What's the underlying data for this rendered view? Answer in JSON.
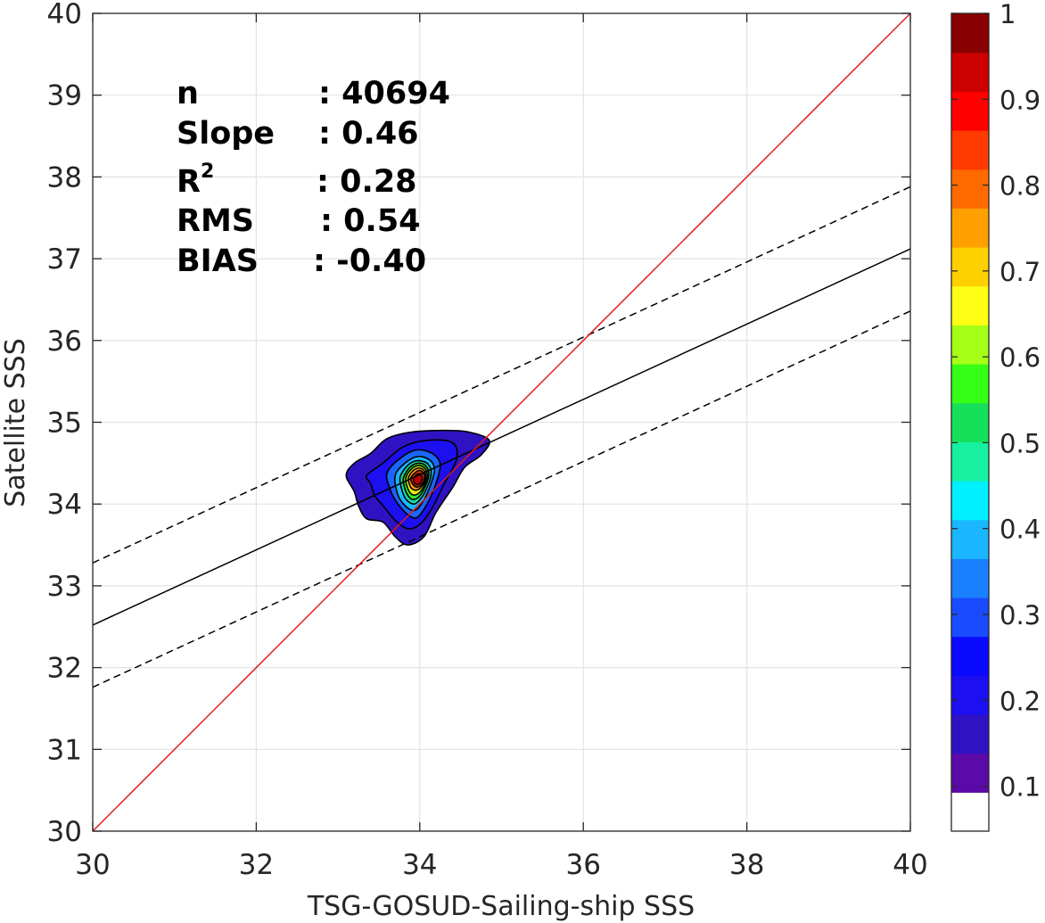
{
  "chart_data": {
    "type": "contour",
    "xlabel": "TSG-GOSUD-Sailing-ship SSS",
    "ylabel": "Satellite SSS",
    "xlim": [
      30,
      40
    ],
    "ylim": [
      30,
      40
    ],
    "x_ticks": [
      30,
      32,
      34,
      36,
      38,
      40
    ],
    "y_ticks": [
      30,
      31,
      32,
      33,
      34,
      35,
      36,
      37,
      38,
      39,
      40
    ],
    "grid": true,
    "stats": {
      "n_label": "n",
      "n_value": ": 40694",
      "slope_label": "Slope",
      "slope_value": ": 0.46",
      "r2_label": "R",
      "r2_sup": "2",
      "r2_value": ": 0.28",
      "rms_label": "RMS",
      "rms_value": ": 0.54",
      "bias_label": "BIAS",
      "bias_value": ": -0.40"
    },
    "lines": {
      "identity": {
        "from": [
          30,
          30
        ],
        "to": [
          40,
          40
        ],
        "color": "#e0191b",
        "style": "solid"
      },
      "regression": {
        "from": [
          30,
          32.52
        ],
        "to": [
          40,
          37.12
        ],
        "color": "#000000",
        "style": "solid"
      },
      "upper_bound": {
        "from": [
          30,
          33.28
        ],
        "to": [
          40,
          37.88
        ],
        "color": "#000000",
        "style": "dashed"
      },
      "lower_bound": {
        "from": [
          30,
          31.76
        ],
        "to": [
          40,
          36.36
        ],
        "color": "#000000",
        "style": "dashed"
      }
    },
    "density_peak": {
      "x": 33.95,
      "y": 34.3
    },
    "contours": [
      {
        "level": 0.05,
        "color": "#2f13c3",
        "points": [
          [
            33.1,
            34.35
          ],
          [
            33.2,
            34.5
          ],
          [
            33.4,
            34.62
          ],
          [
            33.6,
            34.8
          ],
          [
            33.9,
            34.88
          ],
          [
            34.3,
            34.9
          ],
          [
            34.6,
            34.88
          ],
          [
            34.85,
            34.78
          ],
          [
            34.75,
            34.6
          ],
          [
            34.55,
            34.45
          ],
          [
            34.4,
            34.2
          ],
          [
            34.2,
            33.9
          ],
          [
            34.05,
            33.6
          ],
          [
            33.85,
            33.5
          ],
          [
            33.7,
            33.6
          ],
          [
            33.55,
            33.78
          ],
          [
            33.35,
            33.82
          ],
          [
            33.25,
            33.98
          ],
          [
            33.2,
            34.15
          ]
        ]
      },
      {
        "level": 0.15,
        "color": "#1c0ff0",
        "points": [
          [
            33.35,
            34.35
          ],
          [
            33.55,
            34.5
          ],
          [
            33.8,
            34.7
          ],
          [
            34.1,
            34.78
          ],
          [
            34.4,
            34.75
          ],
          [
            34.45,
            34.55
          ],
          [
            34.3,
            34.25
          ],
          [
            34.15,
            33.95
          ],
          [
            34.0,
            33.75
          ],
          [
            33.85,
            33.7
          ],
          [
            33.7,
            33.8
          ],
          [
            33.55,
            33.98
          ],
          [
            33.45,
            34.1
          ],
          [
            33.4,
            34.25
          ]
        ]
      },
      {
        "level": 0.25,
        "color": "#1a66ff",
        "points": [
          [
            33.6,
            34.38
          ],
          [
            33.75,
            34.55
          ],
          [
            33.95,
            34.66
          ],
          [
            34.15,
            34.62
          ],
          [
            34.25,
            34.48
          ],
          [
            34.18,
            34.2
          ],
          [
            34.06,
            33.95
          ],
          [
            33.95,
            33.83
          ],
          [
            33.82,
            33.9
          ],
          [
            33.7,
            34.05
          ],
          [
            33.63,
            34.2
          ]
        ]
      },
      {
        "level": 0.35,
        "color": "#1ab6ff",
        "points": [
          [
            33.7,
            34.35
          ],
          [
            33.82,
            34.5
          ],
          [
            33.97,
            34.58
          ],
          [
            34.12,
            34.54
          ],
          [
            34.18,
            34.42
          ],
          [
            34.12,
            34.2
          ],
          [
            34.02,
            34.0
          ],
          [
            33.93,
            33.92
          ],
          [
            33.82,
            33.98
          ],
          [
            33.73,
            34.12
          ]
        ]
      },
      {
        "level": 0.45,
        "color": "#16d9a0",
        "points": [
          [
            33.76,
            34.33
          ],
          [
            33.86,
            34.48
          ],
          [
            33.98,
            34.53
          ],
          [
            34.1,
            34.49
          ],
          [
            34.14,
            34.37
          ],
          [
            34.08,
            34.18
          ],
          [
            34.0,
            34.05
          ],
          [
            33.92,
            34.0
          ],
          [
            33.83,
            34.06
          ],
          [
            33.78,
            34.18
          ]
        ]
      },
      {
        "level": 0.55,
        "color": "#35e82a",
        "points": [
          [
            33.8,
            34.32
          ],
          [
            33.88,
            34.45
          ],
          [
            33.99,
            34.5
          ],
          [
            34.08,
            34.46
          ],
          [
            34.11,
            34.35
          ],
          [
            34.05,
            34.18
          ],
          [
            33.98,
            34.08
          ],
          [
            33.9,
            34.06
          ],
          [
            33.84,
            34.13
          ],
          [
            33.81,
            34.22
          ]
        ]
      },
      {
        "level": 0.65,
        "color": "#e8f20a",
        "points": [
          [
            33.83,
            34.32
          ],
          [
            33.9,
            34.43
          ],
          [
            33.99,
            34.47
          ],
          [
            34.07,
            34.43
          ],
          [
            34.09,
            34.33
          ],
          [
            34.04,
            34.2
          ],
          [
            33.97,
            34.12
          ],
          [
            33.9,
            34.12
          ],
          [
            33.85,
            34.2
          ]
        ]
      },
      {
        "level": 0.75,
        "color": "#ff9a0a",
        "points": [
          [
            33.86,
            34.32
          ],
          [
            33.92,
            34.41
          ],
          [
            34.0,
            34.44
          ],
          [
            34.06,
            34.4
          ],
          [
            34.07,
            34.31
          ],
          [
            34.02,
            34.21
          ],
          [
            33.96,
            34.17
          ],
          [
            33.9,
            34.19
          ],
          [
            33.87,
            34.25
          ]
        ]
      },
      {
        "level": 0.85,
        "color": "#ff3a0a",
        "points": [
          [
            33.89,
            34.31
          ],
          [
            33.94,
            34.38
          ],
          [
            34.0,
            34.41
          ],
          [
            34.05,
            34.37
          ],
          [
            34.05,
            34.29
          ],
          [
            34.0,
            34.22
          ],
          [
            33.95,
            34.21
          ],
          [
            33.91,
            34.25
          ]
        ]
      },
      {
        "level": 0.95,
        "color": "#b80000",
        "points": [
          [
            33.92,
            34.3
          ],
          [
            33.96,
            34.36
          ],
          [
            34.01,
            34.37
          ],
          [
            34.03,
            34.31
          ],
          [
            34.0,
            34.25
          ],
          [
            33.95,
            34.24
          ]
        ]
      }
    ],
    "colorbar": {
      "ticks": [
        "0.1",
        "0.2",
        "0.3",
        "0.4",
        "0.5",
        "0.6",
        "0.7",
        "0.8",
        "0.9",
        "1"
      ],
      "tick_values": [
        0.1,
        0.2,
        0.3,
        0.4,
        0.5,
        0.6,
        0.7,
        0.8,
        0.9,
        1.0
      ],
      "colors": [
        "#ffffff",
        "#5b0aa8",
        "#2f13c3",
        "#1c0ff0",
        "#0a0aff",
        "#1a4cff",
        "#1a80ff",
        "#1ab6ff",
        "#00f0ff",
        "#16f0a0",
        "#16e05a",
        "#35ff16",
        "#a6ff16",
        "#ffff16",
        "#ffd000",
        "#ffa000",
        "#ff6a00",
        "#ff3a00",
        "#ff0000",
        "#cc0000",
        "#880000"
      ]
    }
  }
}
